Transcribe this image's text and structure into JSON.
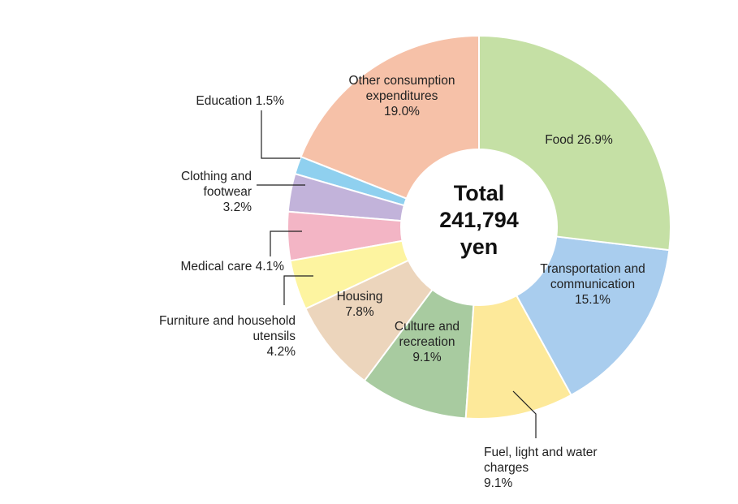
{
  "chart_data": {
    "type": "donut",
    "categories": [
      "Food",
      "Transportation and communication",
      "Fuel, light and water charges",
      "Culture and recreation",
      "Housing",
      "Furniture and household utensils",
      "Medical care",
      "Clothing and footwear",
      "Education",
      "Other consumption expenditures"
    ],
    "values": [
      26.9,
      15.1,
      9.1,
      9.1,
      7.8,
      4.2,
      4.1,
      3.2,
      1.5,
      19.0
    ],
    "value_labels": [
      "26.9%",
      "15.1%",
      "9.1%",
      "9.1%",
      "7.8%",
      "4.2%",
      "4.1%",
      "3.2%",
      "1.5%",
      "19.0%"
    ],
    "colors": [
      "#c5e0a5",
      "#a9cdee",
      "#fde99a",
      "#a8cba0",
      "#ecd5bc",
      "#fdf4a0",
      "#f3b5c5",
      "#c2b3da",
      "#8fd0ef",
      "#f6c1a8"
    ],
    "center": {
      "title": "Total",
      "value": 241794,
      "value_label": "241,794",
      "unit": "yen"
    }
  }
}
